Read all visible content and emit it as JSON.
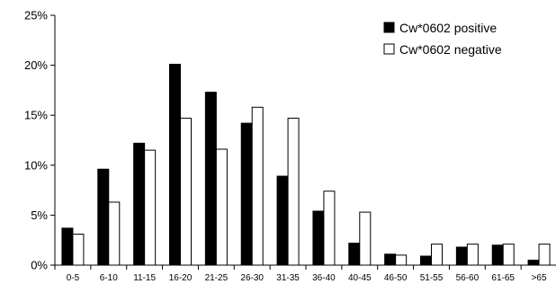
{
  "chart_data": {
    "type": "bar",
    "title": "",
    "xlabel": "",
    "ylabel": "",
    "categories": [
      "0-5",
      "6-10",
      "11-15",
      "16-20",
      "21-25",
      "26-30",
      "31-35",
      "36-40",
      "40-45",
      "46-50",
      "51-55",
      "56-60",
      "61-65",
      ">65"
    ],
    "series": [
      {
        "name": "Cw*0602 positive",
        "values": [
          3.7,
          9.6,
          12.2,
          20.1,
          17.3,
          14.2,
          8.9,
          5.4,
          2.2,
          1.1,
          0.9,
          1.8,
          2.0,
          0.5
        ],
        "color": "#000000"
      },
      {
        "name": "Cw*0602 negative",
        "values": [
          3.1,
          6.3,
          11.5,
          14.7,
          11.6,
          15.8,
          14.7,
          7.4,
          5.3,
          1.0,
          2.1,
          2.1,
          2.1,
          2.1
        ],
        "color": "#ffffff"
      }
    ],
    "ylim": [
      0,
      25
    ],
    "yticks": [
      "0%",
      "5%",
      "10%",
      "15%",
      "20%",
      "25%"
    ],
    "grid": false,
    "legend_position": "top-right"
  }
}
